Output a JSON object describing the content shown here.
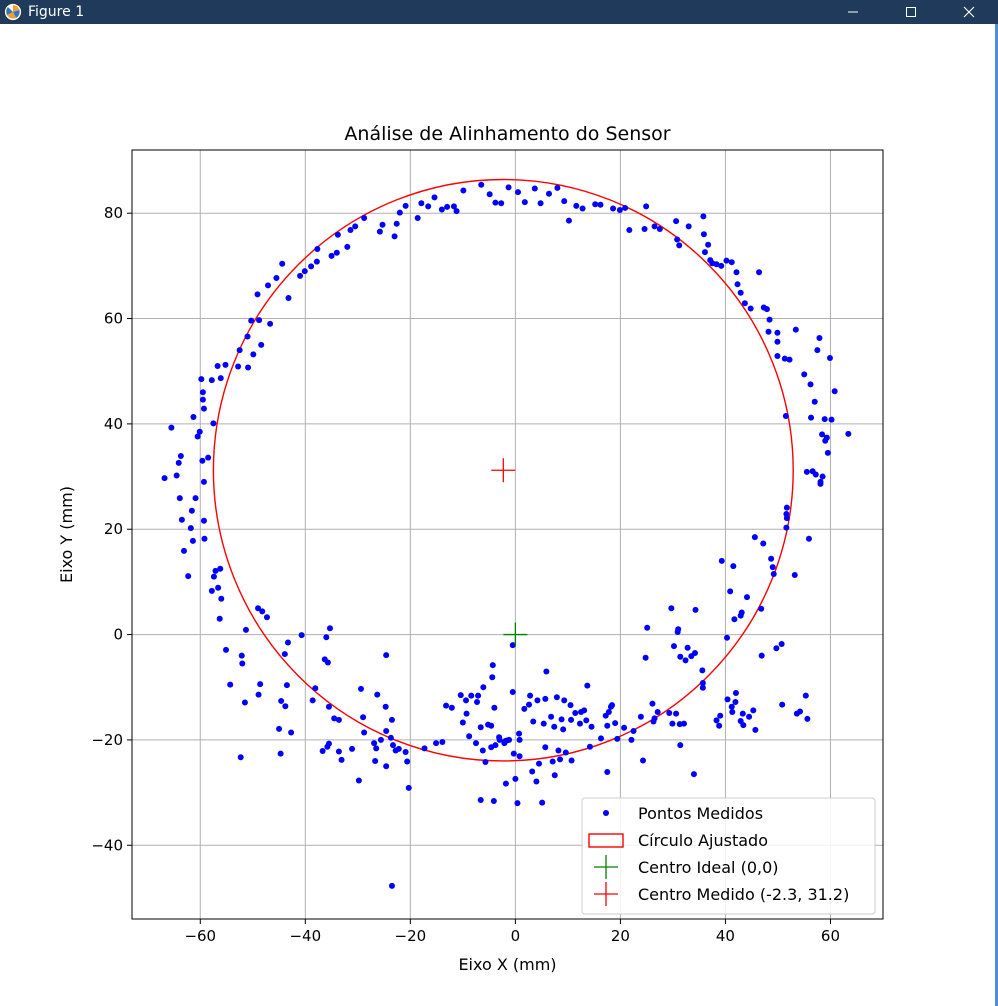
{
  "window": {
    "title": "Figure 1",
    "app_icon": "matplotlib-icon",
    "controls": [
      "minimize-icon",
      "maximize-icon",
      "close-icon"
    ]
  },
  "chart_data": {
    "type": "scatter",
    "title": "Análise de Alinhamento do Sensor",
    "xlabel": "Eixo X (mm)",
    "ylabel": "Eixo Y (mm)",
    "xlim": [
      -73,
      70
    ],
    "ylim": [
      -54,
      92
    ],
    "xticks": [
      -60,
      -40,
      -20,
      0,
      20,
      40,
      60
    ],
    "yticks": [
      -40,
      -20,
      0,
      20,
      40,
      60,
      80
    ],
    "xtick_labels": [
      "−60",
      "−40",
      "−20",
      "0",
      "20",
      "40",
      "60"
    ],
    "ytick_labels": [
      "−40",
      "−20",
      "0",
      "20",
      "40",
      "60",
      "80"
    ],
    "grid": true,
    "legend_position": "lower-right",
    "colors": {
      "points": "#0000ff",
      "circle": "#ff0000",
      "ideal": "#008000",
      "measured": "#ff0000"
    },
    "legend": [
      {
        "label": "Pontos Medidos",
        "kind": "point",
        "color": "#0000ff"
      },
      {
        "label": "Círculo Ajustado",
        "kind": "patch",
        "color": "#ff0000"
      },
      {
        "label": "Centro Ideal (0,0)",
        "kind": "plus",
        "color": "#008000"
      },
      {
        "label": "Centro Medido (-2.3, 31.2)",
        "kind": "plus",
        "color": "#ff0000"
      }
    ],
    "fitted_circle": {
      "cx": -2.3,
      "cy": 31.2,
      "r": 55.2
    },
    "ideal_center": [
      0,
      0
    ],
    "measured_center": [
      -2.3,
      31.2
    ],
    "points": [
      [
        -66.8,
        29.7
      ],
      [
        -65.5,
        39.3
      ],
      [
        -64.5,
        30.2
      ],
      [
        -64.1,
        32.6
      ],
      [
        -63.7,
        33.9
      ],
      [
        -63.9,
        25.9
      ],
      [
        -63.5,
        21.8
      ],
      [
        -63.1,
        15.9
      ],
      [
        -62.3,
        11.1
      ],
      [
        -61.8,
        20.2
      ],
      [
        -61.6,
        23.5
      ],
      [
        -61.4,
        17.8
      ],
      [
        -60.9,
        25.9
      ],
      [
        -61.3,
        41.3
      ],
      [
        -60.5,
        37.6
      ],
      [
        -60.1,
        38.5
      ],
      [
        -59.8,
        48.5
      ],
      [
        -59.5,
        44.6
      ],
      [
        -59.5,
        46.0
      ],
      [
        -59.3,
        42.9
      ],
      [
        -59.6,
        33.0
      ],
      [
        -59.3,
        29.0
      ],
      [
        -59.3,
        21.6
      ],
      [
        -58.5,
        33.6
      ],
      [
        -59.2,
        18.2
      ],
      [
        -57.5,
        40.1
      ],
      [
        -57.8,
        48.3
      ],
      [
        -57.8,
        8.3
      ],
      [
        -57.4,
        11.0
      ],
      [
        -57.1,
        12.1
      ],
      [
        -56.7,
        51.0
      ],
      [
        -56.6,
        8.9
      ],
      [
        -56.3,
        3.0
      ],
      [
        -56.0,
        6.8
      ],
      [
        -56.2,
        12.5
      ],
      [
        -56.1,
        48.7
      ],
      [
        -55.2,
        51.2
      ],
      [
        -55.1,
        -2.9
      ],
      [
        -54.3,
        -9.5
      ],
      [
        -52.8,
        50.9
      ],
      [
        -52.3,
        -23.3
      ],
      [
        -52.5,
        54.0
      ],
      [
        -52.1,
        -4.0
      ],
      [
        -52.0,
        -5.5
      ],
      [
        -51.5,
        -12.9
      ],
      [
        -51.3,
        0.9
      ],
      [
        -51.0,
        56.6
      ],
      [
        -50.9,
        50.7
      ],
      [
        -50.3,
        59.6
      ],
      [
        -49.9,
        53.2
      ],
      [
        -49.1,
        64.6
      ],
      [
        -49.0,
        5.0
      ],
      [
        -48.9,
        -11.4
      ],
      [
        -48.8,
        59.7
      ],
      [
        -48.6,
        -9.4
      ],
      [
        -48.2,
        4.4
      ],
      [
        -48.4,
        55.0
      ],
      [
        -47.3,
        3.3
      ],
      [
        -47.1,
        66.3
      ],
      [
        -46.7,
        59.0
      ],
      [
        -45.5,
        67.7
      ],
      [
        -45.0,
        -17.9
      ],
      [
        -44.7,
        -22.6
      ],
      [
        -44.6,
        -12.6
      ],
      [
        -44.4,
        70.4
      ],
      [
        -43.9,
        -3.7
      ],
      [
        -43.8,
        -13.6
      ],
      [
        -43.5,
        -9.6
      ],
      [
        -43.3,
        -1.5
      ],
      [
        -43.2,
        63.9
      ],
      [
        -42.7,
        -18.6
      ],
      [
        -41.0,
        68.1
      ],
      [
        -40.7,
        -0.1
      ],
      [
        -40.1,
        69.0
      ],
      [
        -38.9,
        69.9
      ],
      [
        -38.6,
        -12.5
      ],
      [
        -38.1,
        -10.2
      ],
      [
        -37.8,
        70.8
      ],
      [
        -37.7,
        73.2
      ],
      [
        -36.7,
        -22.1
      ],
      [
        -36.3,
        -4.7
      ],
      [
        -36.0,
        -0.5
      ],
      [
        -35.8,
        -21.3
      ],
      [
        -35.7,
        -5.3
      ],
      [
        -35.5,
        -13.7
      ],
      [
        -35.5,
        -20.7
      ],
      [
        -35.3,
        1.2
      ],
      [
        -35.0,
        71.9
      ],
      [
        -34.5,
        -15.9
      ],
      [
        -34.0,
        72.5
      ],
      [
        -33.8,
        75.9
      ],
      [
        -33.6,
        -22.2
      ],
      [
        -33.6,
        -16.2
      ],
      [
        -33.1,
        -23.8
      ],
      [
        -32.0,
        73.6
      ],
      [
        -31.4,
        76.8
      ],
      [
        -31.1,
        -21.7
      ],
      [
        -30.5,
        77.5
      ],
      [
        -29.8,
        -27.7
      ],
      [
        -29.4,
        -10.3
      ],
      [
        -29.0,
        -15.7
      ],
      [
        -28.8,
        -18.6
      ],
      [
        -28.8,
        79.1
      ],
      [
        -26.9,
        -20.6
      ],
      [
        -26.7,
        -24.0
      ],
      [
        -26.5,
        -21.6
      ],
      [
        -26.3,
        -11.4
      ],
      [
        -25.8,
        76.5
      ],
      [
        -25.6,
        -20.0
      ],
      [
        -25.3,
        77.8
      ],
      [
        -24.7,
        -13.7
      ],
      [
        -24.6,
        -25.0
      ],
      [
        -24.6,
        -3.9
      ],
      [
        -24.6,
        -18.3
      ],
      [
        -23.7,
        -19.6
      ],
      [
        -23.5,
        -47.7
      ],
      [
        -23.5,
        -16.2
      ],
      [
        -23.3,
        -21.0
      ],
      [
        -23.0,
        75.6
      ],
      [
        -22.8,
        -22.0
      ],
      [
        -22.6,
        78.0
      ],
      [
        -22.2,
        -21.7
      ],
      [
        -22.0,
        80.1
      ],
      [
        -20.9,
        81.4
      ],
      [
        -20.9,
        -22.3
      ],
      [
        -20.6,
        -24.1
      ],
      [
        -20.3,
        -29.1
      ],
      [
        -18.6,
        79.1
      ],
      [
        -17.9,
        81.9
      ],
      [
        -17.3,
        -21.6
      ],
      [
        -16.6,
        81.3
      ],
      [
        -15.4,
        83.0
      ],
      [
        -15.1,
        -20.6
      ],
      [
        -14.0,
        80.7
      ],
      [
        -13.9,
        -20.4
      ],
      [
        -13.2,
        -13.5
      ],
      [
        -13.0,
        81.2
      ],
      [
        -12.1,
        -13.9
      ],
      [
        -11.7,
        81.3
      ],
      [
        -11.2,
        80.4
      ],
      [
        -10.4,
        -11.5
      ],
      [
        -9.9,
        84.3
      ],
      [
        -10.0,
        -16.7
      ],
      [
        -9.4,
        -12.5
      ],
      [
        -9.3,
        -15.0
      ],
      [
        -8.8,
        -19.3
      ],
      [
        -8.4,
        -11.6
      ],
      [
        -7.5,
        -20.6
      ],
      [
        -7.3,
        -12.8
      ],
      [
        -7.1,
        -11.6
      ],
      [
        -6.6,
        -17.6
      ],
      [
        -6.6,
        -31.4
      ],
      [
        -6.5,
        85.4
      ],
      [
        -6.2,
        -22.0
      ],
      [
        -6.1,
        -10.0
      ],
      [
        -5.7,
        -24.2
      ],
      [
        -5.2,
        -17.1
      ],
      [
        -4.9,
        83.6
      ],
      [
        -4.6,
        -17.3
      ],
      [
        -4.6,
        -21.4
      ],
      [
        -4.1,
        -31.6
      ],
      [
        -4.3,
        -5.8
      ],
      [
        -4.4,
        -8.1
      ],
      [
        -4.0,
        -13.9
      ],
      [
        -3.8,
        82.0
      ],
      [
        -3.8,
        -21.0
      ],
      [
        -3.1,
        -19.5
      ],
      [
        -3.0,
        -20.0
      ],
      [
        -2.7,
        81.9
      ],
      [
        -2.1,
        -20.6
      ],
      [
        -1.9,
        -20.2
      ],
      [
        -1.8,
        -28.3
      ],
      [
        -1.6,
        -20.1
      ],
      [
        -1.3,
        84.9
      ],
      [
        -1.2,
        -20.0
      ],
      [
        -0.5,
        -2.0
      ],
      [
        -0.5,
        -10.9
      ],
      [
        -0.3,
        -22.6
      ],
      [
        0.0,
        -27.4
      ],
      [
        0.4,
        -32.0
      ],
      [
        0.5,
        84.0
      ],
      [
        0.7,
        -18.8
      ],
      [
        0.8,
        -23.1
      ],
      [
        0.8,
        -20.0
      ],
      [
        1.7,
        -14.1
      ],
      [
        1.8,
        82.1
      ],
      [
        2.6,
        -13.3
      ],
      [
        2.8,
        -11.6
      ],
      [
        3.2,
        -26.0
      ],
      [
        3.4,
        -16.5
      ],
      [
        3.7,
        84.7
      ],
      [
        4.0,
        -27.9
      ],
      [
        4.2,
        -12.5
      ],
      [
        4.5,
        -24.5
      ],
      [
        4.8,
        81.9
      ],
      [
        5.1,
        -31.9
      ],
      [
        5.4,
        -16.9
      ],
      [
        5.7,
        -12.2
      ],
      [
        5.7,
        -21.4
      ],
      [
        5.9,
        -7.0
      ],
      [
        6.4,
        83.7
      ],
      [
        6.8,
        -15.6
      ],
      [
        7.1,
        -24.1
      ],
      [
        7.4,
        -17.5
      ],
      [
        7.5,
        -26.7
      ],
      [
        8.0,
        84.8
      ],
      [
        7.9,
        -11.9
      ],
      [
        8.2,
        -22.0
      ],
      [
        8.5,
        -23.7
      ],
      [
        8.8,
        -16.1
      ],
      [
        9.3,
        82.3
      ],
      [
        9.1,
        -18.0
      ],
      [
        9.3,
        -12.5
      ],
      [
        9.6,
        -22.4
      ],
      [
        10.2,
        78.6
      ],
      [
        10.5,
        -13.4
      ],
      [
        10.6,
        -16.2
      ],
      [
        10.7,
        -23.9
      ],
      [
        11.4,
        -14.9
      ],
      [
        11.6,
        81.4
      ],
      [
        12.3,
        -16.9
      ],
      [
        12.5,
        -14.7
      ],
      [
        12.8,
        80.9
      ],
      [
        13.1,
        -14.4
      ],
      [
        13.5,
        -16.3
      ],
      [
        13.7,
        -9.7
      ],
      [
        14.2,
        -21.3
      ],
      [
        14.5,
        -17.5
      ],
      [
        15.2,
        81.7
      ],
      [
        16.2,
        81.6
      ],
      [
        16.3,
        -19.7
      ],
      [
        17.2,
        -15.4
      ],
      [
        17.5,
        -17.3
      ],
      [
        17.5,
        -26.1
      ],
      [
        17.8,
        -14.7
      ],
      [
        18.2,
        -13.7
      ],
      [
        18.4,
        -13.4
      ],
      [
        18.6,
        80.9
      ],
      [
        19.0,
        -16.8
      ],
      [
        19.4,
        -19.8
      ],
      [
        19.9,
        80.6
      ],
      [
        20.7,
        -17.7
      ],
      [
        20.9,
        81.0
      ],
      [
        21.7,
        76.8
      ],
      [
        22.1,
        -20.0
      ],
      [
        22.5,
        -18.3
      ],
      [
        23.9,
        -15.6
      ],
      [
        24.3,
        -23.9
      ],
      [
        24.6,
        77.0
      ],
      [
        24.8,
        -4.4
      ],
      [
        24.9,
        81.3
      ],
      [
        25.1,
        1.3
      ],
      [
        26.1,
        -13.1
      ],
      [
        26.3,
        -16.5
      ],
      [
        26.5,
        77.5
      ],
      [
        26.5,
        -15.9
      ],
      [
        27.1,
        -14.7
      ],
      [
        27.5,
        77.0
      ],
      [
        29.3,
        -14.9
      ],
      [
        29.7,
        5.0
      ],
      [
        29.9,
        -16.9
      ],
      [
        30.2,
        -2.2
      ],
      [
        30.6,
        -15.0
      ],
      [
        30.6,
        78.5
      ],
      [
        30.8,
        75.0
      ],
      [
        30.9,
        0.5
      ],
      [
        31.0,
        1.0
      ],
      [
        31.2,
        73.9
      ],
      [
        31.3,
        -17.0
      ],
      [
        31.4,
        -4.2
      ],
      [
        31.4,
        -21.0
      ],
      [
        32.1,
        -16.9
      ],
      [
        32.4,
        -4.9
      ],
      [
        32.8,
        -2.5
      ],
      [
        33.0,
        77.5
      ],
      [
        33.5,
        -4.1
      ],
      [
        34.0,
        -26.5
      ],
      [
        34.2,
        -3.5
      ],
      [
        34.3,
        4.7
      ],
      [
        35.6,
        -6.8
      ],
      [
        35.7,
        -9.2
      ],
      [
        35.7,
        -10.1
      ],
      [
        35.8,
        79.4
      ],
      [
        35.9,
        76.0
      ],
      [
        36.1,
        72.6
      ],
      [
        36.7,
        74.0
      ],
      [
        37.1,
        71.1
      ],
      [
        37.5,
        70.5
      ],
      [
        38.3,
        70.3
      ],
      [
        38.3,
        -16.3
      ],
      [
        38.8,
        -17.3
      ],
      [
        39.0,
        -15.4
      ],
      [
        39.2,
        70.0
      ],
      [
        39.3,
        14.0
      ],
      [
        40.2,
        71.0
      ],
      [
        40.3,
        -0.6
      ],
      [
        40.4,
        -12.3
      ],
      [
        40.9,
        8.2
      ],
      [
        41.2,
        -13.7
      ],
      [
        41.3,
        -14.7
      ],
      [
        41.2,
        70.7
      ],
      [
        41.5,
        13.0
      ],
      [
        41.7,
        2.9
      ],
      [
        41.9,
        -12.8
      ],
      [
        42.0,
        -11.1
      ],
      [
        42.1,
        68.8
      ],
      [
        42.3,
        66.5
      ],
      [
        42.9,
        3.6
      ],
      [
        42.9,
        -16.4
      ],
      [
        42.9,
        64.9
      ],
      [
        43.1,
        4.2
      ],
      [
        43.3,
        -15.0
      ],
      [
        43.4,
        -17.2
      ],
      [
        43.7,
        62.9
      ],
      [
        44.1,
        7.1
      ],
      [
        44.5,
        -15.6
      ],
      [
        44.8,
        61.9
      ],
      [
        45.3,
        -14.4
      ],
      [
        45.6,
        18.5
      ],
      [
        45.7,
        -18.1
      ],
      [
        46.4,
        68.8
      ],
      [
        46.8,
        4.9
      ],
      [
        46.9,
        -4.0
      ],
      [
        47.2,
        17.3
      ],
      [
        47.3,
        62.1
      ],
      [
        47.9,
        61.8
      ],
      [
        48.2,
        57.5
      ],
      [
        48.4,
        59.8
      ],
      [
        48.7,
        14.4
      ],
      [
        49.0,
        12.8
      ],
      [
        49.2,
        11.5
      ],
      [
        49.7,
        -2.6
      ],
      [
        49.9,
        57.3
      ],
      [
        49.9,
        55.6
      ],
      [
        49.9,
        52.9
      ],
      [
        50.7,
        -1.8
      ],
      [
        50.8,
        -13.3
      ],
      [
        51.3,
        52.4
      ],
      [
        51.5,
        41.5
      ],
      [
        51.6,
        20.3
      ],
      [
        51.6,
        22.9
      ],
      [
        51.7,
        22.1
      ],
      [
        51.7,
        24.1
      ],
      [
        52.2,
        52.2
      ],
      [
        53.2,
        11.3
      ],
      [
        53.4,
        57.9
      ],
      [
        53.6,
        -15.0
      ],
      [
        54.2,
        -14.6
      ],
      [
        55.0,
        49.4
      ],
      [
        55.3,
        -11.6
      ],
      [
        55.5,
        30.9
      ],
      [
        55.6,
        -16.0
      ],
      [
        55.9,
        18.2
      ],
      [
        56.2,
        47.5
      ],
      [
        56.3,
        41.2
      ],
      [
        56.6,
        31.0
      ],
      [
        57.0,
        44.2
      ],
      [
        57.2,
        30.4
      ],
      [
        57.5,
        54.0
      ],
      [
        57.9,
        56.3
      ],
      [
        58.1,
        29.0
      ],
      [
        58.1,
        28.6
      ],
      [
        58.4,
        38.0
      ],
      [
        58.5,
        30.0
      ],
      [
        58.9,
        40.9
      ],
      [
        59.0,
        36.8
      ],
      [
        59.3,
        37.4
      ],
      [
        59.5,
        34.5
      ],
      [
        59.9,
        52.5
      ],
      [
        60.2,
        40.8
      ],
      [
        60.8,
        46.2
      ],
      [
        63.4,
        38.1
      ]
    ]
  }
}
